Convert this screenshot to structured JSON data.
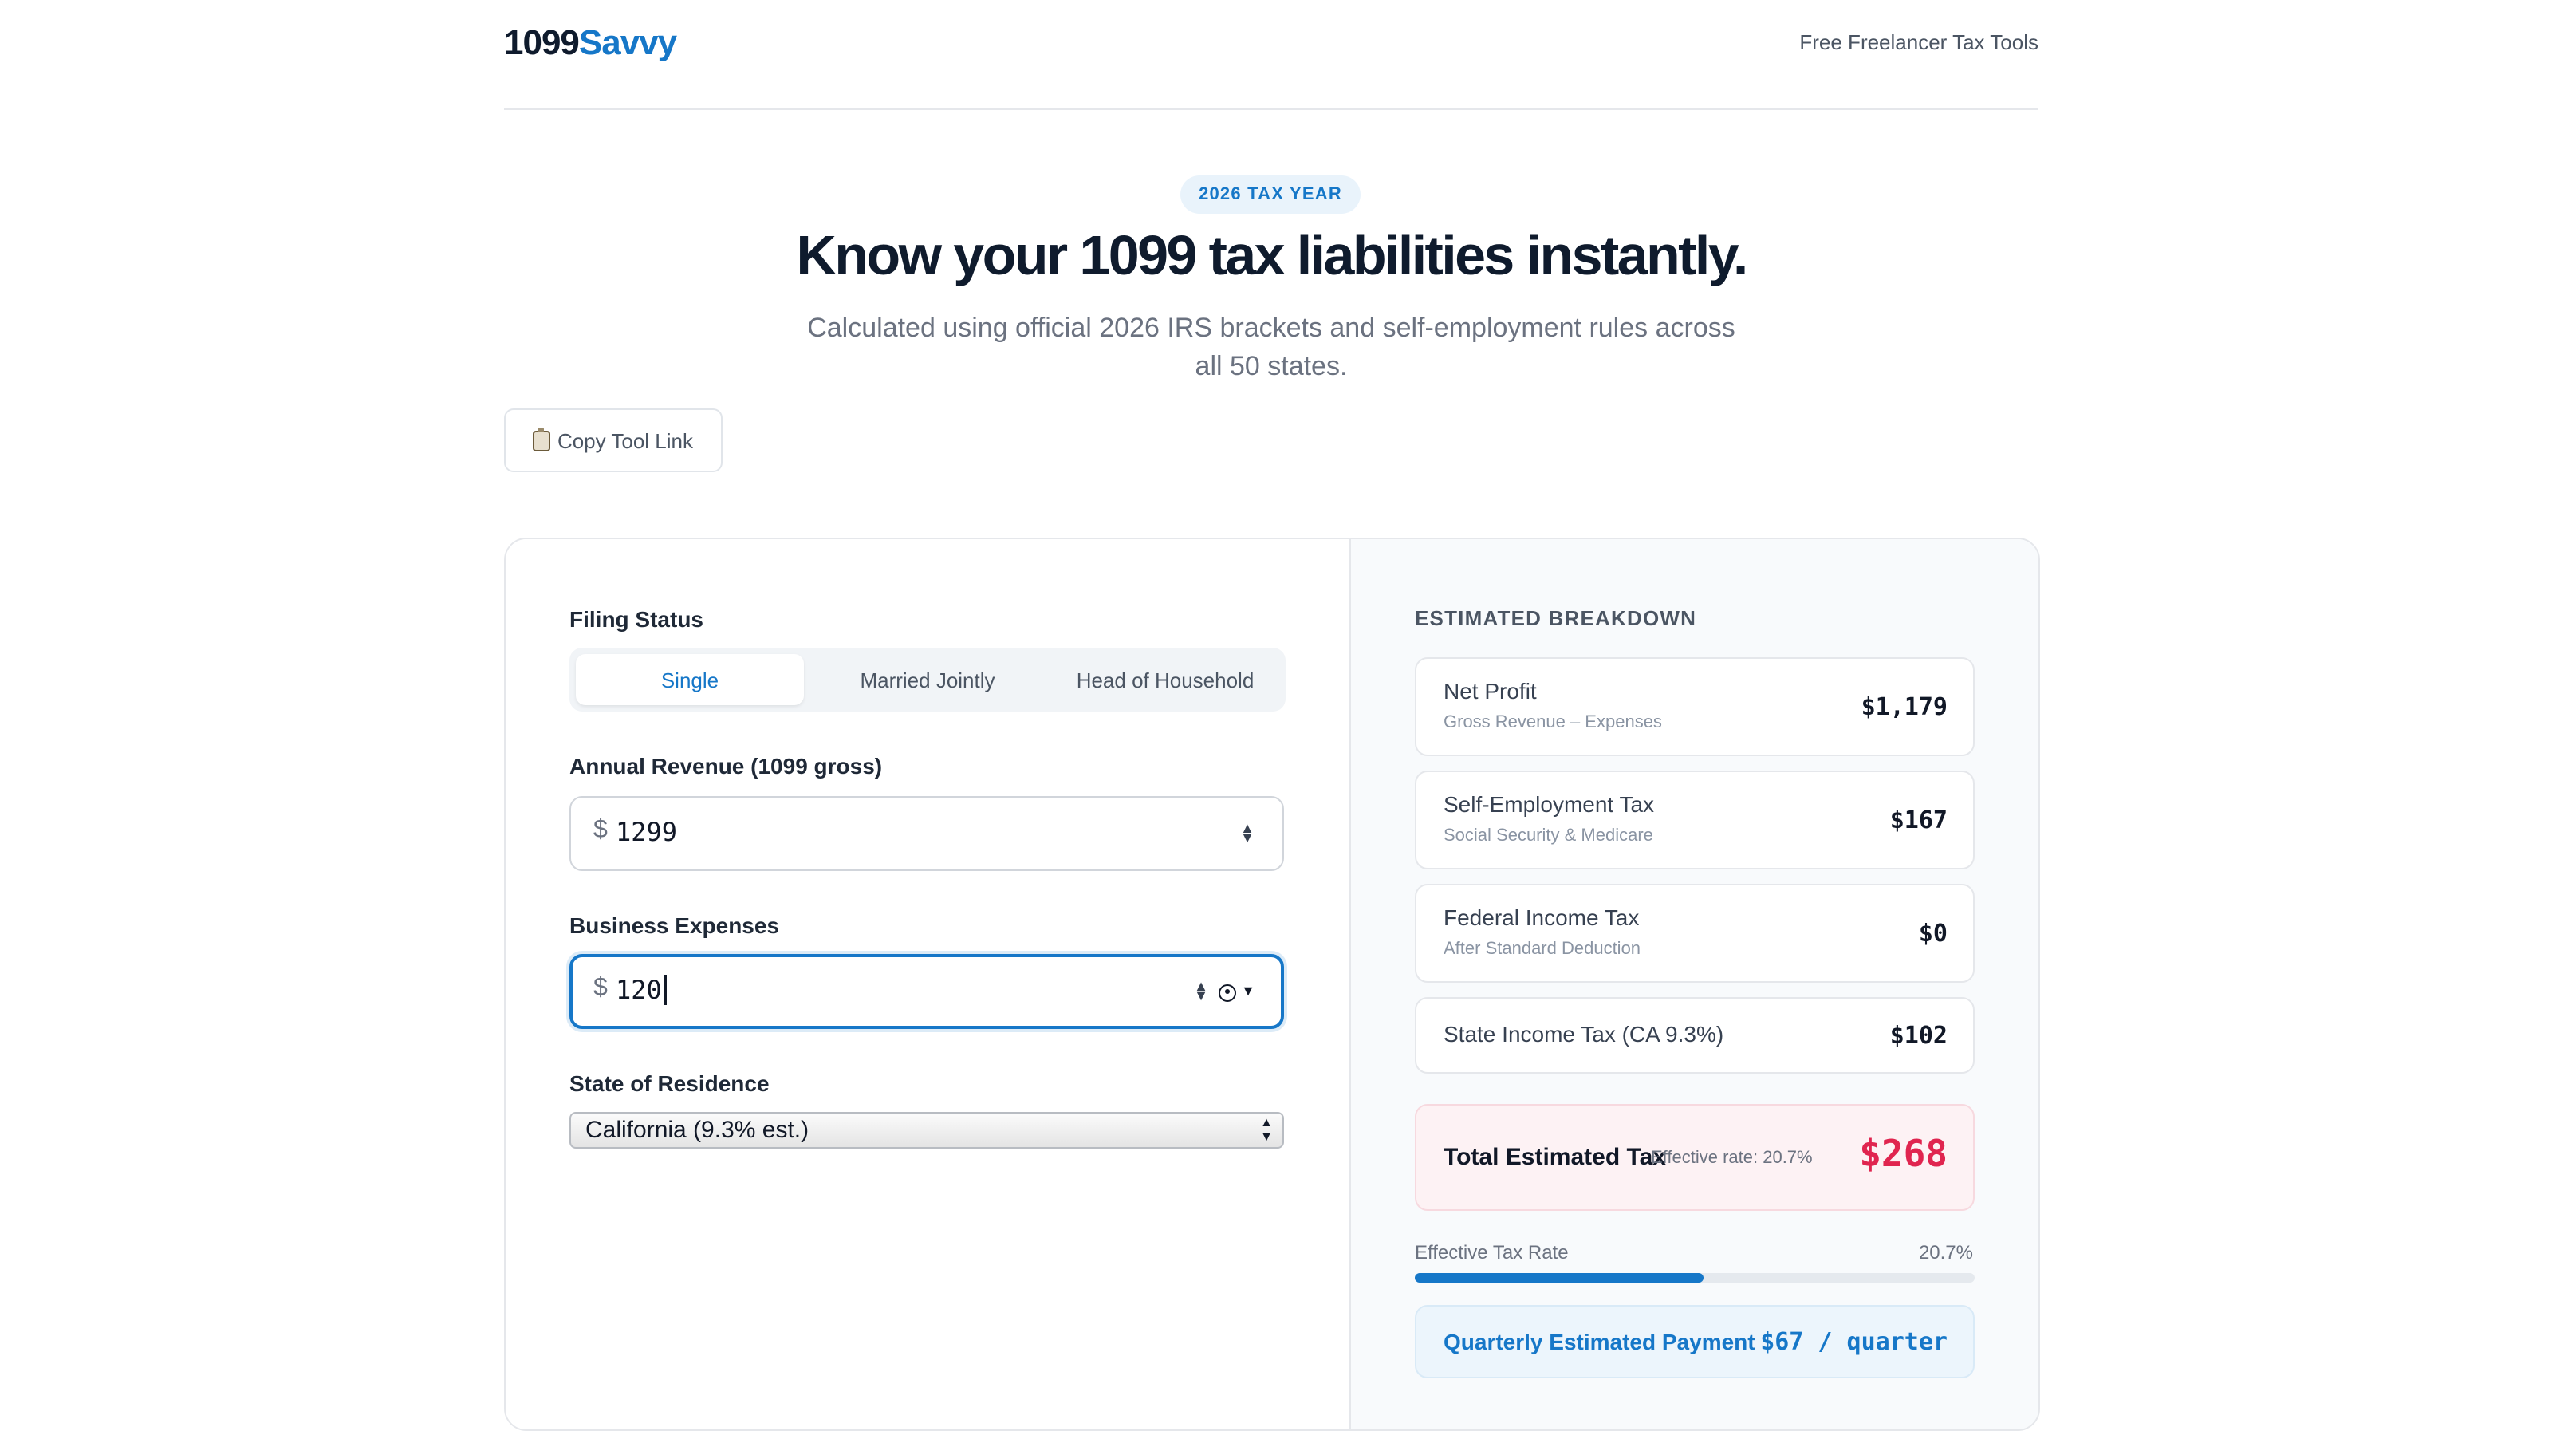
{
  "header": {
    "logo_number": "1099",
    "logo_brand": "Savvy",
    "nav_link": "Free Freelancer Tax Tools"
  },
  "hero": {
    "badge": "2026 TAX YEAR",
    "title": "Know your 1099 tax liabilities instantly.",
    "subtitle": "Calculated using official 2026 IRS brackets and self-employment rules across all 50 states.",
    "copy_button": "Copy Tool Link",
    "copy_icon": "clipboard-icon"
  },
  "form": {
    "filing_status_label": "Filing Status",
    "filing_options": [
      "Single",
      "Married Jointly",
      "Head of Household"
    ],
    "filing_selected": "Single",
    "revenue_label": "Annual Revenue (1099 gross)",
    "revenue_currency": "$",
    "revenue_value": "1299",
    "expenses_label": "Business Expenses",
    "expenses_currency": "$",
    "expenses_value": "120",
    "state_label": "State of Residence",
    "state_selected": "California (9.3% est.)"
  },
  "breakdown": {
    "title": "ESTIMATED BREAKDOWN",
    "rows": [
      {
        "title": "Net Profit",
        "subtitle": "Gross Revenue – Expenses",
        "value": "$1,179"
      },
      {
        "title": "Self-Employment Tax",
        "subtitle": "Social Security & Medicare",
        "value": "$167"
      },
      {
        "title": "Federal Income Tax",
        "subtitle": "After Standard Deduction",
        "value": "$0"
      },
      {
        "title": "State Income Tax (CA 9.3%)",
        "subtitle": "",
        "value": "$102"
      }
    ],
    "total_label": "Total Estimated Tax",
    "total_sub": "Effective rate: 20.7%",
    "total_value": "$268",
    "effective_label": "Effective Tax Rate",
    "effective_value": "20.7%",
    "effective_fraction": 0.517,
    "quarterly_label": "Quarterly Estimated Payment",
    "quarterly_value": "$67 / quarter"
  },
  "colors": {
    "accent": "#1677c8",
    "total_red": "#e0254f",
    "text_dark": "#0f1b2d"
  }
}
